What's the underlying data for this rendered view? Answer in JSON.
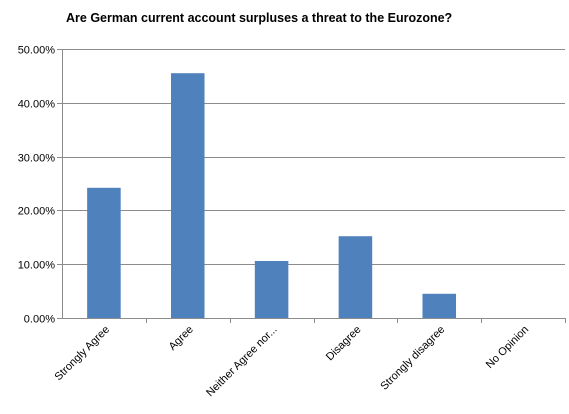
{
  "chart_data": {
    "type": "bar",
    "title": "Are German current account surpluses a threat to the Eurozone?",
    "xlabel": "",
    "ylabel": "",
    "categories": [
      "Strongly Agree",
      "Agree",
      "Neither Agree nor...",
      "Disagree",
      "Strongly disagree",
      "No Opinion"
    ],
    "values": [
      24.2,
      45.5,
      10.6,
      15.2,
      4.5,
      0
    ],
    "ylim": [
      0,
      50
    ],
    "yticks": [
      "0.00%",
      "10.00%",
      "20.00%",
      "30.00%",
      "40.00%",
      "50.00%"
    ],
    "grid": true,
    "bar_color": "#4f81bd"
  }
}
